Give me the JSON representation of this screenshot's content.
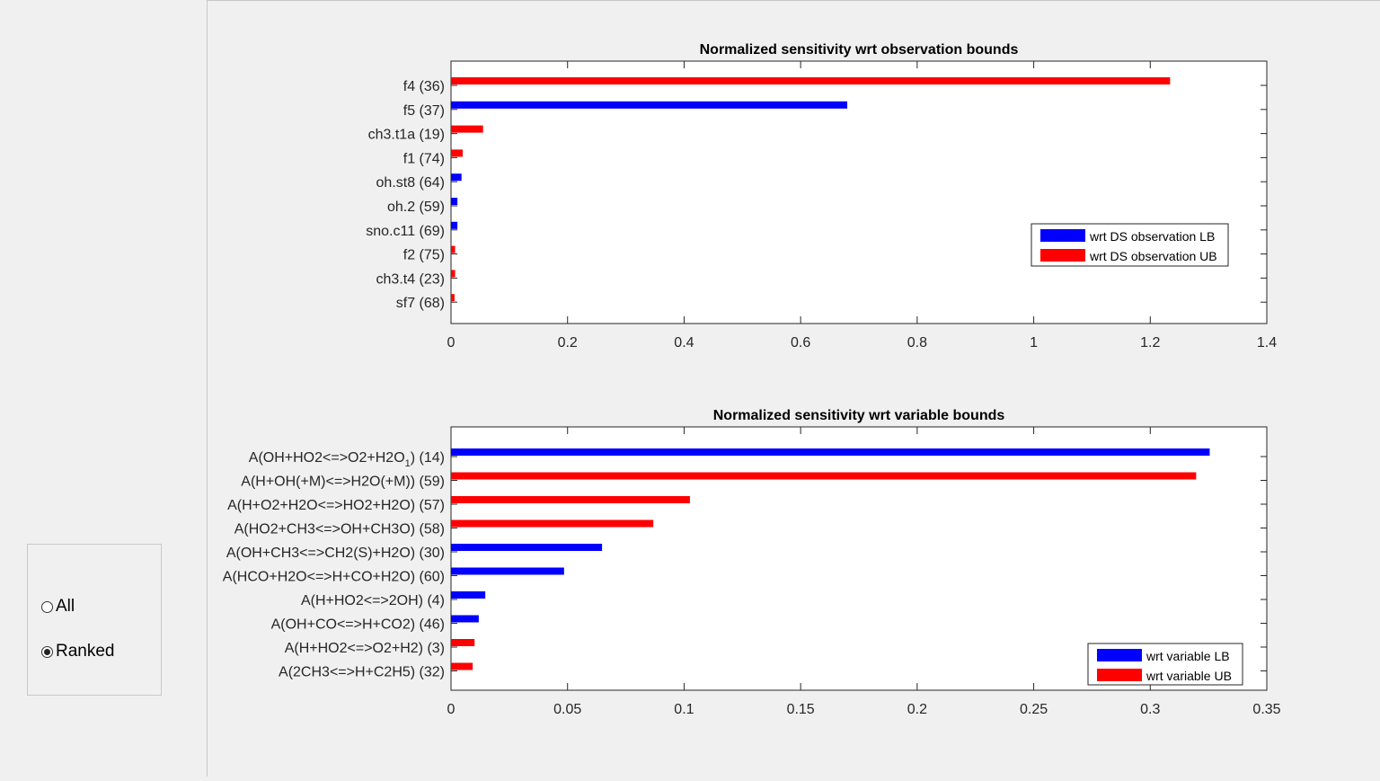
{
  "controls": {
    "options": [
      {
        "label": "All",
        "checked": false
      },
      {
        "label": "Ranked",
        "checked": true
      }
    ]
  },
  "colors": {
    "lb": "#0000ff",
    "ub": "#ff0000"
  },
  "chart_data": [
    {
      "type": "bar",
      "orientation": "horizontal",
      "title": "Normalized sensitivity wrt observation bounds",
      "categories": [
        "f4 (36)",
        "f5 (37)",
        "ch3.t1a (19)",
        "f1 (74)",
        "oh.st8 (64)",
        "oh.2 (59)",
        "sno.c11 (69)",
        "f2 (75)",
        "ch3.t4 (23)",
        "sf7 (68)"
      ],
      "series": [
        {
          "name": "wrt DS observation LB",
          "color": "#0000ff",
          "values": [
            0,
            0.68,
            0,
            0,
            0.018,
            0.011,
            0.011,
            0,
            0,
            0
          ]
        },
        {
          "name": "wrt DS observation UB",
          "color": "#ff0000",
          "values": [
            1.234,
            0,
            0.055,
            0.02,
            0,
            0,
            0,
            0.007,
            0.007,
            0.006
          ]
        }
      ],
      "xlim": [
        0,
        1.4
      ],
      "xticks": [
        "0",
        "0.2",
        "0.4",
        "0.6",
        "0.8",
        "1",
        "1.2",
        "1.4"
      ],
      "legend": "right"
    },
    {
      "type": "bar",
      "orientation": "horizontal",
      "title": "Normalized sensitivity wrt variable bounds",
      "categories": [
        "A(OH+HO2<=>O2+H2O1) (14)",
        "A(H+OH(+M)<=>H2O(+M)) (59)",
        "A(H+O2+H2O<=>HO2+H2O) (57)",
        "A(HO2+CH3<=>OH+CH3O) (58)",
        "A(OH+CH3<=>CH2(S)+H2O) (30)",
        "A(HCO+H2O<=>H+CO+H2O) (60)",
        "A(H+HO2<=>2OH) (4)",
        "A(OH+CO<=>H+CO2) (46)",
        "A(H+HO2<=>O2+H2) (3)",
        "A(2CH3<=>H+C2H5) (32)"
      ],
      "series": [
        {
          "name": "wrt variable LB",
          "color": "#0000ff",
          "values": [
            0.3255,
            0,
            0,
            0,
            0.0648,
            0.0485,
            0.0147,
            0.0119,
            0,
            0
          ]
        },
        {
          "name": "wrt variable UB",
          "color": "#ff0000",
          "values": [
            0,
            0.3197,
            0.1025,
            0.0868,
            0,
            0,
            0,
            0,
            0.0101,
            0.0093
          ]
        }
      ],
      "xlim": [
        0,
        0.35
      ],
      "xticks": [
        "0",
        "0.05",
        "0.1",
        "0.15",
        "0.2",
        "0.25",
        "0.3",
        "0.35"
      ],
      "legend": "bottom-right"
    }
  ]
}
